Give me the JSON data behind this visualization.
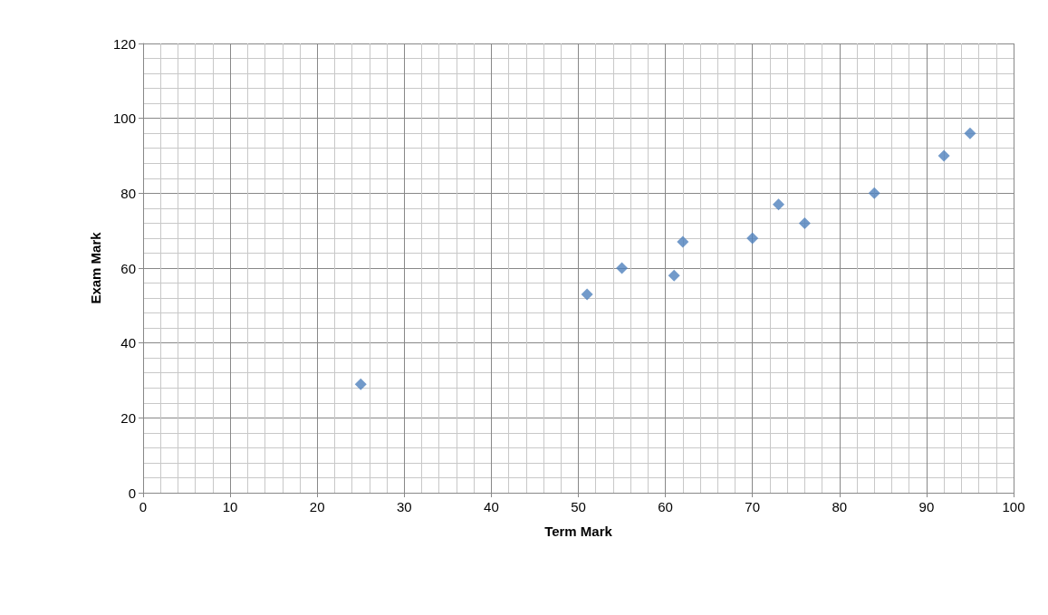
{
  "chart_data": {
    "type": "scatter",
    "xlabel": "Term Mark",
    "ylabel": "Exam Mark",
    "x": [
      25,
      51,
      55,
      61,
      62,
      70,
      73,
      76,
      84,
      92,
      95
    ],
    "values": [
      29,
      53,
      60,
      58,
      67,
      68,
      77,
      72,
      80,
      90,
      96
    ],
    "color": "#4f81bd",
    "marker": "diamond",
    "xlim": [
      0,
      100
    ],
    "xticks": [
      0,
      10,
      20,
      30,
      40,
      50,
      60,
      70,
      80,
      90,
      100
    ],
    "ylim": [
      0,
      120
    ],
    "yticks": [
      0,
      20,
      40,
      60,
      80,
      100,
      120
    ],
    "grid": true
  }
}
